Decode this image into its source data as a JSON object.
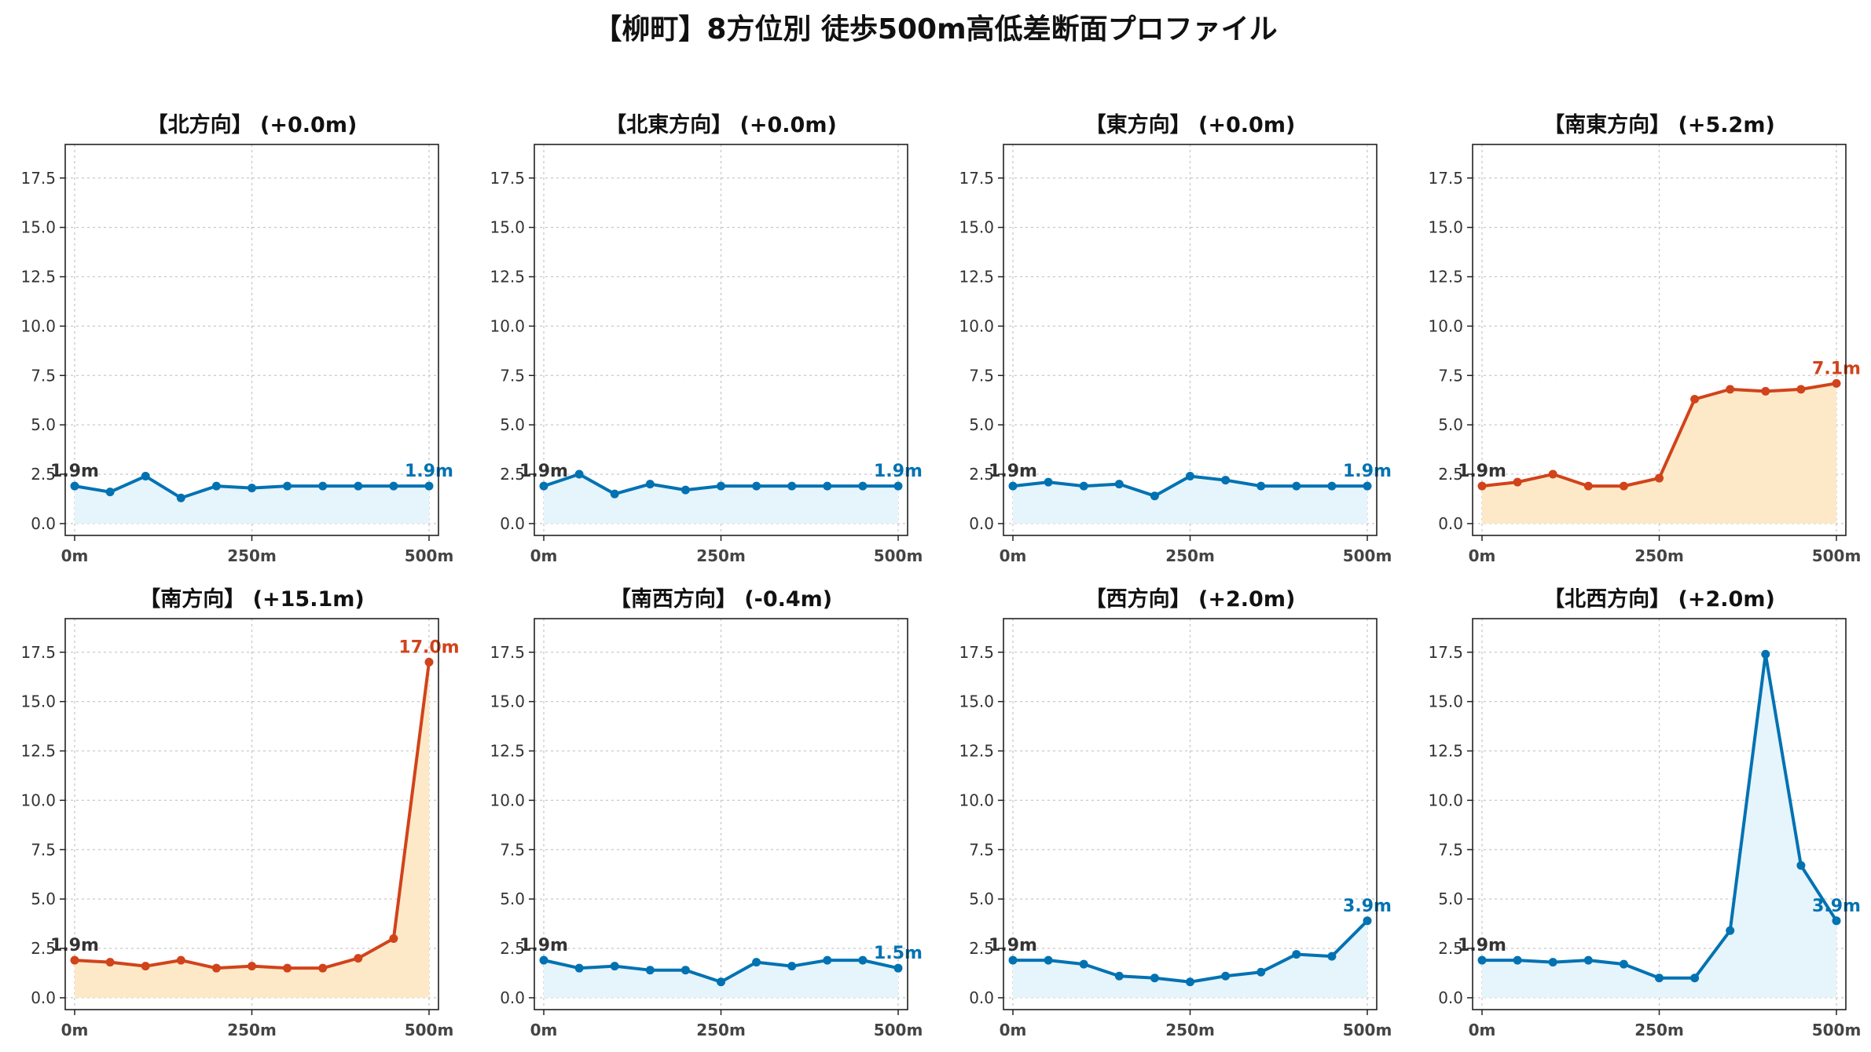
{
  "figure_title": "【柳町】8方位別 徒歩500m高低差断面プロファイル",
  "colors": {
    "flat_line": "#0072b2",
    "flat_fill": "#e6f4fb",
    "uphill_line": "#d1431b",
    "uphill_fill": "#fde9c8",
    "grid": "#c8c8c8"
  },
  "chart_data": [
    {
      "type": "line",
      "title": "【北方向】 (+0.0m)",
      "style": "flat",
      "x": [
        0,
        50,
        100,
        150,
        200,
        250,
        300,
        350,
        400,
        450,
        500
      ],
      "y": [
        1.9,
        1.6,
        2.4,
        1.3,
        1.9,
        1.8,
        1.9,
        1.9,
        1.9,
        1.9,
        1.9
      ],
      "start_label": "1.9m",
      "end_label": "1.9m",
      "ylim": [
        -0.6,
        19.2
      ],
      "yticks": [
        "0.0",
        "2.5",
        "5.0",
        "7.5",
        "10.0",
        "12.5",
        "15.0",
        "17.5"
      ],
      "xticks": [
        "0m",
        "250m",
        "500m"
      ],
      "grid": true
    },
    {
      "type": "line",
      "title": "【北東方向】 (+0.0m)",
      "style": "flat",
      "x": [
        0,
        50,
        100,
        150,
        200,
        250,
        300,
        350,
        400,
        450,
        500
      ],
      "y": [
        1.9,
        2.5,
        1.5,
        2.0,
        1.7,
        1.9,
        1.9,
        1.9,
        1.9,
        1.9,
        1.9
      ],
      "start_label": "1.9m",
      "end_label": "1.9m",
      "ylim": [
        -0.6,
        19.2
      ],
      "yticks": [
        "0.0",
        "2.5",
        "5.0",
        "7.5",
        "10.0",
        "12.5",
        "15.0",
        "17.5"
      ],
      "xticks": [
        "0m",
        "250m",
        "500m"
      ],
      "grid": true
    },
    {
      "type": "line",
      "title": "【東方向】 (+0.0m)",
      "style": "flat",
      "x": [
        0,
        50,
        100,
        150,
        200,
        250,
        300,
        350,
        400,
        450,
        500
      ],
      "y": [
        1.9,
        2.1,
        1.9,
        2.0,
        1.4,
        2.4,
        2.2,
        1.9,
        1.9,
        1.9,
        1.9
      ],
      "start_label": "1.9m",
      "end_label": "1.9m",
      "ylim": [
        -0.6,
        19.2
      ],
      "yticks": [
        "0.0",
        "2.5",
        "5.0",
        "7.5",
        "10.0",
        "12.5",
        "15.0",
        "17.5"
      ],
      "xticks": [
        "0m",
        "250m",
        "500m"
      ],
      "grid": true
    },
    {
      "type": "line",
      "title": "【南東方向】 (+5.2m)",
      "style": "uphill",
      "x": [
        0,
        50,
        100,
        150,
        200,
        250,
        300,
        350,
        400,
        450,
        500
      ],
      "y": [
        1.9,
        2.1,
        2.5,
        1.9,
        1.9,
        2.3,
        6.3,
        6.8,
        6.7,
        6.8,
        7.1
      ],
      "start_label": "1.9m",
      "end_label": "7.1m",
      "ylim": [
        -0.6,
        19.2
      ],
      "yticks": [
        "0.0",
        "2.5",
        "5.0",
        "7.5",
        "10.0",
        "12.5",
        "15.0",
        "17.5"
      ],
      "xticks": [
        "0m",
        "250m",
        "500m"
      ],
      "grid": true
    },
    {
      "type": "line",
      "title": "【南方向】 (+15.1m)",
      "style": "uphill",
      "x": [
        0,
        50,
        100,
        150,
        200,
        250,
        300,
        350,
        400,
        450,
        500
      ],
      "y": [
        1.9,
        1.8,
        1.6,
        1.9,
        1.5,
        1.6,
        1.5,
        1.5,
        2.0,
        3.0,
        17.0
      ],
      "start_label": "1.9m",
      "end_label": "17.0m",
      "ylim": [
        -0.6,
        19.2
      ],
      "yticks": [
        "0.0",
        "2.5",
        "5.0",
        "7.5",
        "10.0",
        "12.5",
        "15.0",
        "17.5"
      ],
      "xticks": [
        "0m",
        "250m",
        "500m"
      ],
      "grid": true
    },
    {
      "type": "line",
      "title": "【南西方向】 (-0.4m)",
      "style": "flat",
      "x": [
        0,
        50,
        100,
        150,
        200,
        250,
        300,
        350,
        400,
        450,
        500
      ],
      "y": [
        1.9,
        1.5,
        1.6,
        1.4,
        1.4,
        0.8,
        1.8,
        1.6,
        1.9,
        1.9,
        1.5
      ],
      "start_label": "1.9m",
      "end_label": "1.5m",
      "ylim": [
        -0.6,
        19.2
      ],
      "yticks": [
        "0.0",
        "2.5",
        "5.0",
        "7.5",
        "10.0",
        "12.5",
        "15.0",
        "17.5"
      ],
      "xticks": [
        "0m",
        "250m",
        "500m"
      ],
      "grid": true
    },
    {
      "type": "line",
      "title": "【西方向】 (+2.0m)",
      "style": "flat",
      "x": [
        0,
        50,
        100,
        150,
        200,
        250,
        300,
        350,
        400,
        450,
        500
      ],
      "y": [
        1.9,
        1.9,
        1.7,
        1.1,
        1.0,
        0.8,
        1.1,
        1.3,
        2.2,
        2.1,
        3.9
      ],
      "start_label": "1.9m",
      "end_label": "3.9m",
      "ylim": [
        -0.6,
        19.2
      ],
      "yticks": [
        "0.0",
        "2.5",
        "5.0",
        "7.5",
        "10.0",
        "12.5",
        "15.0",
        "17.5"
      ],
      "xticks": [
        "0m",
        "250m",
        "500m"
      ],
      "grid": true
    },
    {
      "type": "line",
      "title": "【北西方向】 (+2.0m)",
      "style": "flat",
      "x": [
        0,
        50,
        100,
        150,
        200,
        250,
        300,
        350,
        400,
        450,
        500
      ],
      "y": [
        1.9,
        1.9,
        1.8,
        1.9,
        1.7,
        1.0,
        1.0,
        3.4,
        17.4,
        6.7,
        3.9
      ],
      "start_label": "1.9m",
      "end_label": "3.9m",
      "ylim": [
        -0.6,
        19.2
      ],
      "yticks": [
        "0.0",
        "2.5",
        "5.0",
        "7.5",
        "10.0",
        "12.5",
        "15.0",
        "17.5"
      ],
      "xticks": [
        "0m",
        "250m",
        "500m"
      ],
      "grid": true
    }
  ]
}
